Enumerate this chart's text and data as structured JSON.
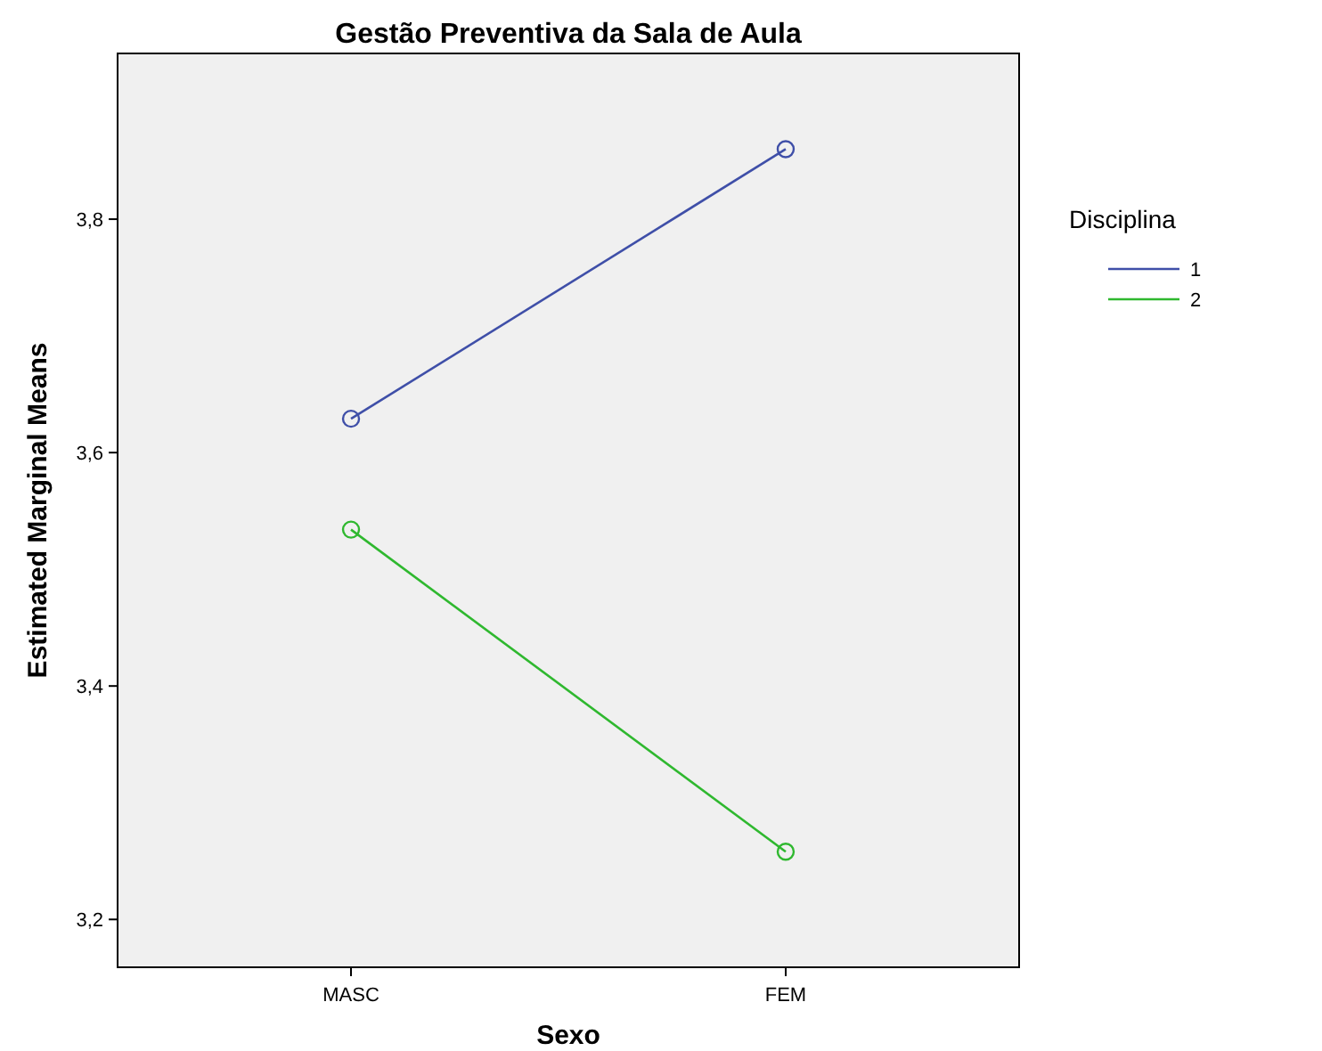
{
  "chart_data": {
    "type": "line",
    "title": "Gestão Preventiva da Sala de Aula",
    "xlabel": "Sexo",
    "ylabel": "Estimated Marginal Means",
    "legend_title": "Disciplina",
    "categories": [
      "MASC",
      "FEM"
    ],
    "series": [
      {
        "name": "1",
        "color": "#3f4fa8",
        "values": [
          3.629,
          3.86
        ]
      },
      {
        "name": "2",
        "color": "#2fb82f",
        "values": [
          3.534,
          3.258
        ]
      }
    ],
    "ylim": [
      3.159,
      3.942
    ],
    "yticks": [
      {
        "value": 3.2,
        "label": "3,2"
      },
      {
        "value": 3.4,
        "label": "3,4"
      },
      {
        "value": 3.6,
        "label": "3,6"
      },
      {
        "value": 3.8,
        "label": "3,8"
      }
    ],
    "grid": false,
    "legend": "right",
    "marker": "circle",
    "line_style": "solid"
  }
}
